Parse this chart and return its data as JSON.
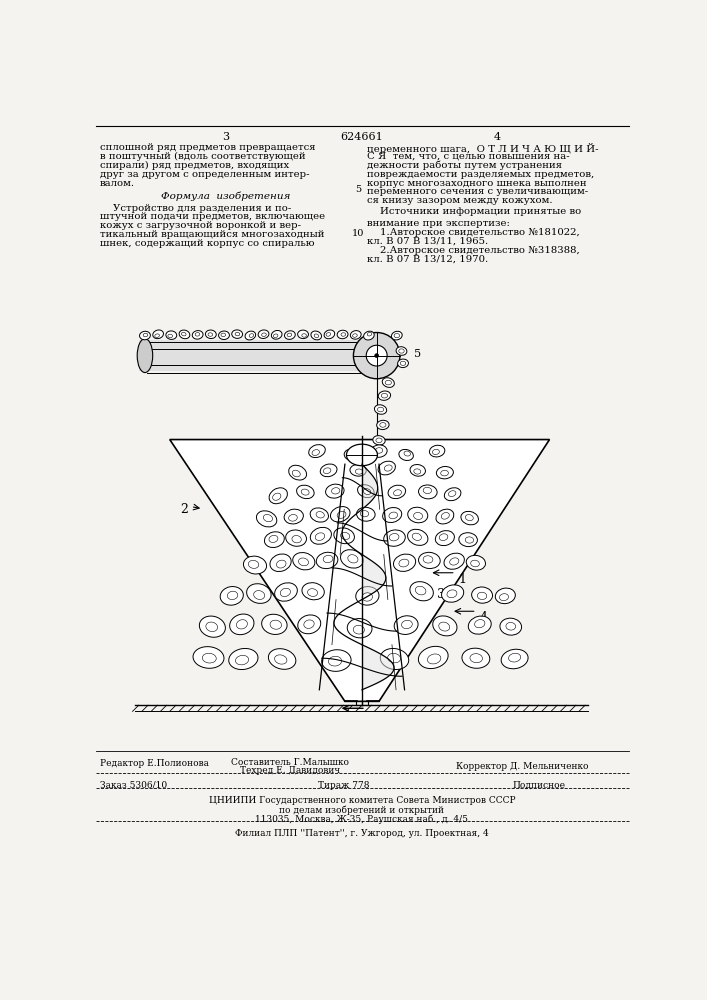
{
  "background_color": "#ffffff",
  "page_bg": "#f5f3f0",
  "patent_number": "624661",
  "page_left_num": "3",
  "page_right_num": "4",
  "text_col1": [
    "сплошной ряд предметов превращается",
    "в поштучный (вдоль соответствующей",
    "спирали) ряд предметов, входящих",
    "друг за другом с определенным интер-",
    "валом."
  ],
  "formula_title": "Формула  изобретения",
  "formula_text": [
    "    Устройство для разделения и по-",
    "штучной подачи предметов, включающее",
    "кожух с загрузочной воронкой и вер-",
    "тикальный вращающийся многозаходный",
    "шнек, содержащий корпус со спиралью"
  ],
  "text_col2_top": [
    "переменного шага,  О Т Л И Ч А Ю Щ И Й-",
    "С Я  тем, что, с целью повышения на-",
    "дежности работы путем устранения",
    "повреждаемости разделяемых предметов,",
    "корпус многозаходного шнека выполнен",
    "переменного сечения с увеличивающим-",
    "ся книзу зазором между кожухом."
  ],
  "line_num_5": "5",
  "line_num_10": "10",
  "sources_title": "    Источники информации принятые во",
  "sources_subtitle": "внимание при экспертизе:",
  "source1": "    1.Авторское свидетельство №181022,",
  "source1b": "кл. В 07 В 13/11, 1965.",
  "source2": "    2.Авторское свидетельство №318388,",
  "source2b": "кл. В 07 В 13/12, 1970."
}
